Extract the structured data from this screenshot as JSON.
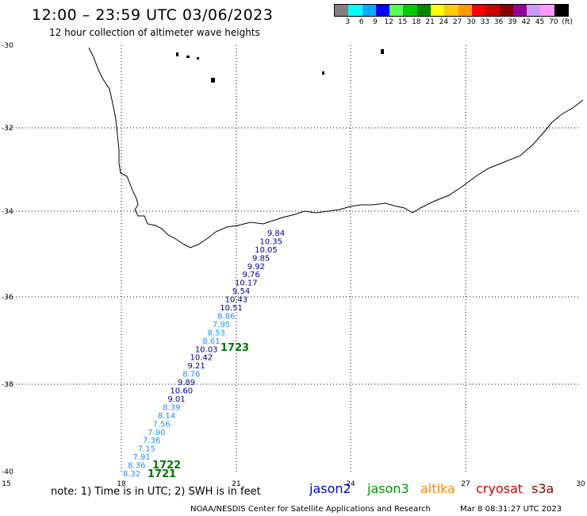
{
  "header": {
    "title": "12:00 – 23:59 UTC 03/06/2023",
    "subtitle": "12 hour collection of altimeter wave heights"
  },
  "colorbar": {
    "colors": [
      "#808080",
      "#00ffff",
      "#00aaff",
      "#0000ff",
      "#55ff55",
      "#00cc00",
      "#008800",
      "#ffff00",
      "#ffcc00",
      "#ff9900",
      "#ff0000",
      "#cc0000",
      "#880000",
      "#990099",
      "#cc99ff",
      "#ff99ff",
      "#000000"
    ],
    "labels": [
      "3",
      "6",
      "9",
      "12",
      "15",
      "18",
      "21",
      "24",
      "27",
      "30",
      "33",
      "36",
      "39",
      "42",
      "45",
      "70",
      "(ft)"
    ]
  },
  "axes": {
    "lon_labels": [
      "15",
      "18",
      "21",
      "24",
      "27",
      "30"
    ],
    "lat_labels": [
      "-30",
      "-32",
      "-34",
      "-36",
      "-38",
      "-40"
    ]
  },
  "track": {
    "readings": [
      {
        "v": "9.84",
        "c": "#00008b"
      },
      {
        "v": "10.35",
        "c": "#00008b"
      },
      {
        "v": "10.05",
        "c": "#00008b"
      },
      {
        "v": "9.85",
        "c": "#00008b"
      },
      {
        "v": "9.92",
        "c": "#00008b"
      },
      {
        "v": "9.76",
        "c": "#00008b"
      },
      {
        "v": "10.17",
        "c": "#00008b"
      },
      {
        "v": "9.54",
        "c": "#00008b"
      },
      {
        "v": "10.43",
        "c": "#00008b"
      },
      {
        "v": "10.51",
        "c": "#00008b"
      },
      {
        "v": "8.86",
        "c": "#1e90ff"
      },
      {
        "v": "7.95",
        "c": "#1e90ff"
      },
      {
        "v": "8.53",
        "c": "#1e90ff"
      },
      {
        "v": "8.61",
        "c": "#1e90ff"
      },
      {
        "v": "10.03",
        "c": "#00008b"
      },
      {
        "v": "10.42",
        "c": "#00008b"
      },
      {
        "v": "9.21",
        "c": "#00008b"
      },
      {
        "v": "8.76",
        "c": "#1e90ff"
      },
      {
        "v": "9.89",
        "c": "#00008b"
      },
      {
        "v": "10.60",
        "c": "#00008b"
      },
      {
        "v": "9.01",
        "c": "#00008b"
      },
      {
        "v": "8.39",
        "c": "#1e90ff"
      },
      {
        "v": "8.14",
        "c": "#1e90ff"
      },
      {
        "v": "7.56",
        "c": "#1e90ff"
      },
      {
        "v": "7.90",
        "c": "#1e90ff"
      },
      {
        "v": "7.36",
        "c": "#1e90ff"
      },
      {
        "v": "7.15",
        "c": "#1e90ff"
      },
      {
        "v": "7.91",
        "c": "#1e90ff"
      },
      {
        "v": "8.36",
        "c": "#1e90ff"
      },
      {
        "v": "8.32",
        "c": "#1e90ff"
      }
    ],
    "times": [
      "1723",
      "1722",
      "1721"
    ],
    "time_color": "#007700"
  },
  "legend": {
    "note": "note:  1) Time is in UTC;  2) SWH is in feet",
    "satellites": [
      {
        "name": "jason2",
        "color": "#0000cc"
      },
      {
        "name": "jason3",
        "color": "#009900"
      },
      {
        "name": "altika",
        "color": "#ff8800"
      },
      {
        "name": "cryosat",
        "color": "#cc0000"
      },
      {
        "name": "s3a",
        "color": "#880000"
      }
    ]
  },
  "footer": {
    "credit": "NOAA/NESDIS Center for Satellite Applications and Research",
    "timestamp": "Mar  8 08:31:27 UTC 2023"
  }
}
